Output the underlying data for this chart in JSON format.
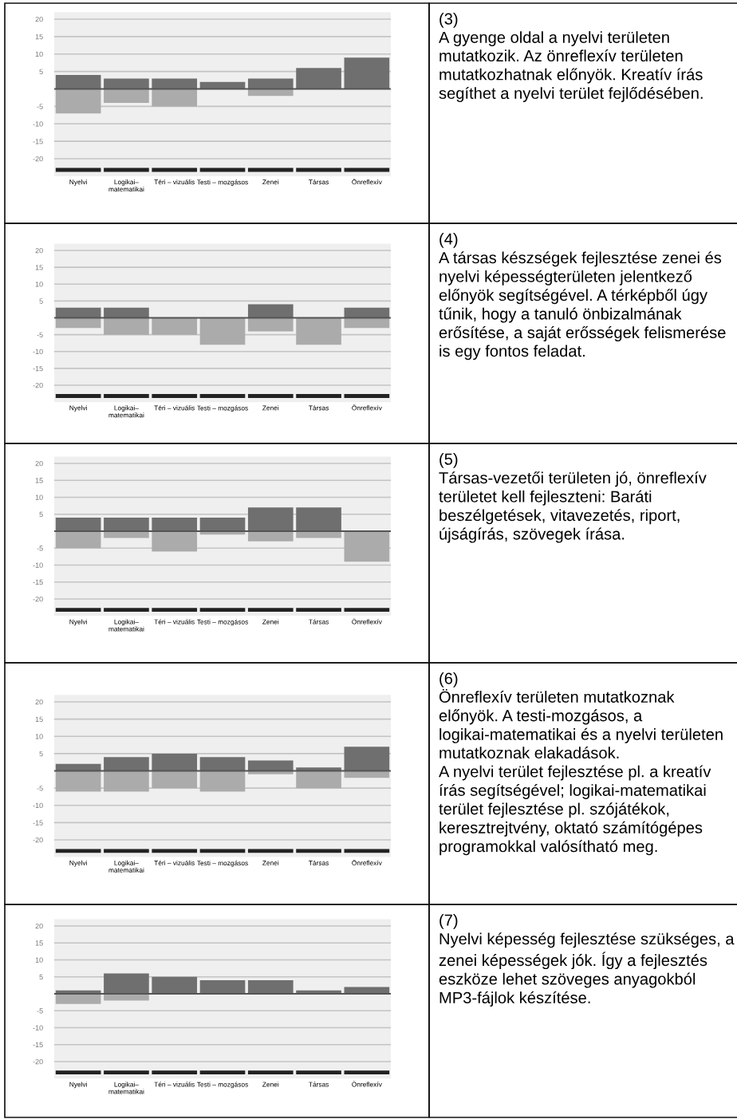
{
  "chart_data": [
    {
      "type": "bar",
      "categories": [
        "Nyelvi",
        "Logikai–\nmatematikai",
        "Téri – vizuális",
        "Testi – mozgásos",
        "Zenei",
        "Társas",
        "Önreflexív"
      ],
      "series": [
        {
          "color": "#6f6f6f",
          "values": [
            4,
            3,
            3,
            2,
            3,
            6,
            9
          ]
        },
        {
          "color": "#ababab",
          "values": [
            -7,
            -4,
            -5,
            null,
            -2,
            null,
            null
          ]
        }
      ],
      "ylim": [
        -25,
        22
      ],
      "yticks": [
        20,
        15,
        10,
        5,
        -5,
        -10,
        -15,
        -20
      ],
      "grid": "y",
      "ref_lines": [
        {
          "axis": "y",
          "value": 0,
          "color": "#555555"
        }
      ],
      "stacked": true,
      "annotations": [
        "(3)",
        "A gyenge oldal a nyelvi területen mutatkozik. Az önreflexív területen mutatkozhatnak előnyök. Kreatív írás segíthet a nyelvi terület fejlődésében."
      ]
    },
    {
      "type": "bar",
      "categories": [
        "Nyelvi",
        "Logikai–\nmatematikai",
        "Téri – vizuális",
        "Testi – mozgásos",
        "Zenei",
        "Társas",
        "Önreflexív"
      ],
      "series": [
        {
          "color": "#6f6f6f",
          "values": [
            3,
            3,
            null,
            null,
            4,
            null,
            3
          ]
        },
        {
          "color": "#ababab",
          "values": [
            -3,
            -5,
            -5,
            -8,
            -4,
            -8,
            -3
          ]
        }
      ],
      "ylim": [
        -25,
        22
      ],
      "yticks": [
        20,
        15,
        10,
        5,
        -5,
        -10,
        -15,
        -20
      ],
      "grid": "y",
      "ref_lines": [
        {
          "axis": "y",
          "value": 0,
          "color": "#555555"
        }
      ],
      "stacked": true,
      "annotations": [
        "(4)",
        "A társas készségek fejlesztése zenei és nyelvi képességterületen jelentkező előnyök segítségével. A térképből úgy tűnik, hogy a tanuló önbizalmának erősítése, a saját erősségek felismerése is egy fontos feladat."
      ]
    },
    {
      "type": "bar",
      "categories": [
        "Nyelvi",
        "Logikai–\nmatematikai",
        "Téri – vizuális",
        "Testi – mozgásos",
        "Zenei",
        "Társas",
        "Önreflexív"
      ],
      "series": [
        {
          "color": "#6f6f6f",
          "values": [
            4,
            4,
            4,
            4,
            7,
            7,
            null
          ]
        },
        {
          "color": "#ababab",
          "values": [
            -5,
            -2,
            -6,
            -1,
            -3,
            -2,
            -9
          ]
        }
      ],
      "ylim": [
        -25,
        22
      ],
      "yticks": [
        20,
        15,
        10,
        5,
        -5,
        -10,
        -15,
        -20
      ],
      "grid": "y",
      "ref_lines": [
        {
          "axis": "y",
          "value": 0,
          "color": "#555555"
        }
      ],
      "stacked": true,
      "annotations": [
        "(5)",
        "Társas-vezetői területen jó, önreflexív területet kell fejleszteni: Baráti beszélgetések, vitavezetés, riport, újságírás, szövegek írása."
      ]
    },
    {
      "type": "bar",
      "categories": [
        "Nyelvi",
        "Logikai–\nmatematikai",
        "Téri – vizuális",
        "Testi – mozgásos",
        "Zenei",
        "Társas",
        "Önreflexív"
      ],
      "series": [
        {
          "color": "#6f6f6f",
          "values": [
            2,
            4,
            5,
            4,
            3,
            1,
            7
          ]
        },
        {
          "color": "#ababab",
          "values": [
            -6,
            -6,
            -5,
            -6,
            -1,
            -5,
            -2
          ]
        }
      ],
      "ylim": [
        -25,
        22
      ],
      "yticks": [
        20,
        15,
        10,
        5,
        -5,
        -10,
        -15,
        -20
      ],
      "grid": "y",
      "ref_lines": [
        {
          "axis": "y",
          "value": 0,
          "color": "#555555"
        }
      ],
      "stacked": true,
      "annotations": [
        "(6)",
        "Önreflexív területen mutatkoznak előnyök. A testi-mozgásos, a logikai-matematikai és a nyelvi területen mutatkoznak elakadások.",
        "A nyelvi terület fejlesztése pl. a kreatív írás segítségével; logikai-matematikai terület fejlesztése pl. szójátékok, keresztrejtvény, oktató számítógépes programokkal valósítható meg."
      ]
    },
    {
      "type": "bar",
      "categories": [
        "Nyelvi",
        "Logikai–\nmatematikai",
        "Téri – vizuális",
        "Testi – mozgásos",
        "Zenei",
        "Társas",
        "Önreflexív"
      ],
      "series": [
        {
          "color": "#6f6f6f",
          "values": [
            1,
            6,
            5,
            4,
            4,
            1,
            2
          ]
        },
        {
          "color": "#ababab",
          "values": [
            -3,
            -2,
            null,
            null,
            null,
            null,
            null
          ]
        }
      ],
      "ylim": [
        -25,
        22
      ],
      "yticks": [
        20,
        15,
        10,
        5,
        -5,
        -10,
        -15,
        -20
      ],
      "grid": "y",
      "ref_lines": [
        {
          "axis": "y",
          "value": 0,
          "color": "#555555"
        }
      ],
      "stacked": true,
      "annotations": [
        "(7)",
        "Nyelvi képesség fejlesztése szükséges, a zenei képességek jók. Így a fejlesztés eszköze lehet szöveges anyagokból MP3-fájlok készítése."
      ]
    }
  ]
}
